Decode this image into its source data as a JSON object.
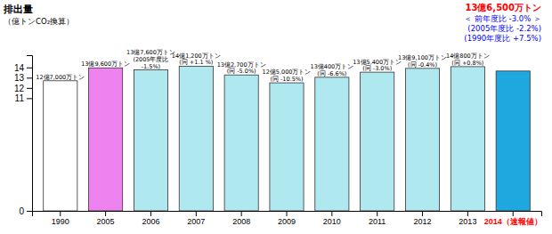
{
  "chart_data": {
    "type": "bar",
    "ylabel": "排出量",
    "ylabel_unit": "（億トンCO₂換算）",
    "categories": [
      "1990",
      "2005",
      "2006",
      "2007",
      "2008",
      "2009",
      "2010",
      "2011",
      "2012",
      "2013",
      "2014（速報値）"
    ],
    "values": [
      12.7,
      13.96,
      13.76,
      14.12,
      13.27,
      12.5,
      13.04,
      13.54,
      13.91,
      14.08,
      13.65
    ],
    "value_labels": [
      "12億7,000万トン",
      "13億9,600万トン",
      "13億7,600万トン\n(2005年度比\n-1.5%)",
      "14億1,200万トン\n(同 +1.1 %)",
      "13億2,700万トン\n(同 -5.0%)",
      "12億5,000万トン\n(同 -10.5%)",
      "13億400万トン\n(同 -6.6%)",
      "13億5,400万トン\n(同 -3.0%)",
      "13億9,100万トン\n(同 -0.4%)",
      "14億800万トン\n(同 +0.8%)",
      null
    ],
    "colors": [
      "#ffffff",
      "#ee82ee",
      "#b0e8f0",
      "#b0e8f0",
      "#b0e8f0",
      "#b0e8f0",
      "#b0e8f0",
      "#b0e8f0",
      "#b0e8f0",
      "#b0e8f0",
      "#1fa8e0"
    ],
    "ylim": [
      0,
      15.2
    ],
    "yticks": [
      0,
      11,
      12,
      13,
      14
    ],
    "annotations": [
      {
        "text": "13億6,500万トン",
        "color": "red"
      },
      {
        "text": "＜ 前年度比 -3.0% ＞",
        "color": "blue"
      },
      {
        "text": "(2005年度比 -2.2%)",
        "color": "blue"
      },
      {
        "text": "(1990年度比 +7.5%)",
        "color": "blue"
      }
    ]
  }
}
